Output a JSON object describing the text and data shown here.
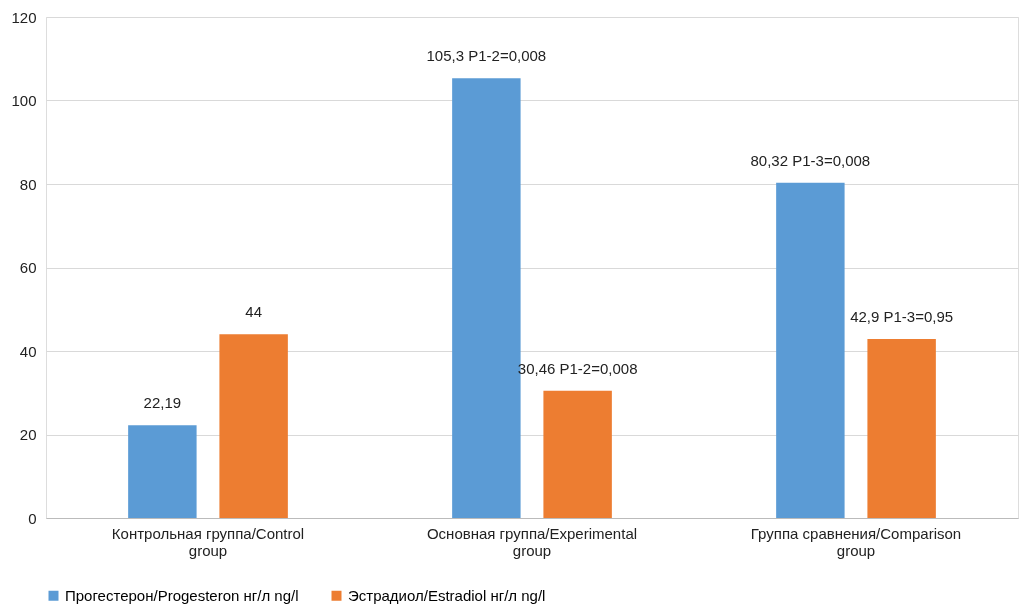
{
  "chart_data": {
    "type": "bar",
    "categories": [
      "Контрольная группа/Control group",
      "Основная группа/Experimental group",
      "Группа сравнения/Comparison group"
    ],
    "series": [
      {
        "name": "Прогестерон/Progesteron нг/л ng/l",
        "color": "#5b9bd5",
        "values": [
          22.19,
          105.3,
          80.32
        ],
        "value_labels": [
          "22,19",
          "105,3 P1-2=0,008",
          "80,32  P1-3=0,008"
        ]
      },
      {
        "name": "Эстрадиол/Estradiol нг/л ng/l",
        "color": "#ed7d31",
        "values": [
          44,
          30.46,
          42.9
        ],
        "value_labels": [
          "44",
          "30,46 P1-2=0,008",
          "42,9 P1-3=0,95"
        ]
      }
    ],
    "ylim": [
      0,
      120
    ],
    "yticks": [
      0,
      20,
      40,
      60,
      80,
      100,
      120
    ],
    "grid": "y",
    "legend": "bottom"
  }
}
